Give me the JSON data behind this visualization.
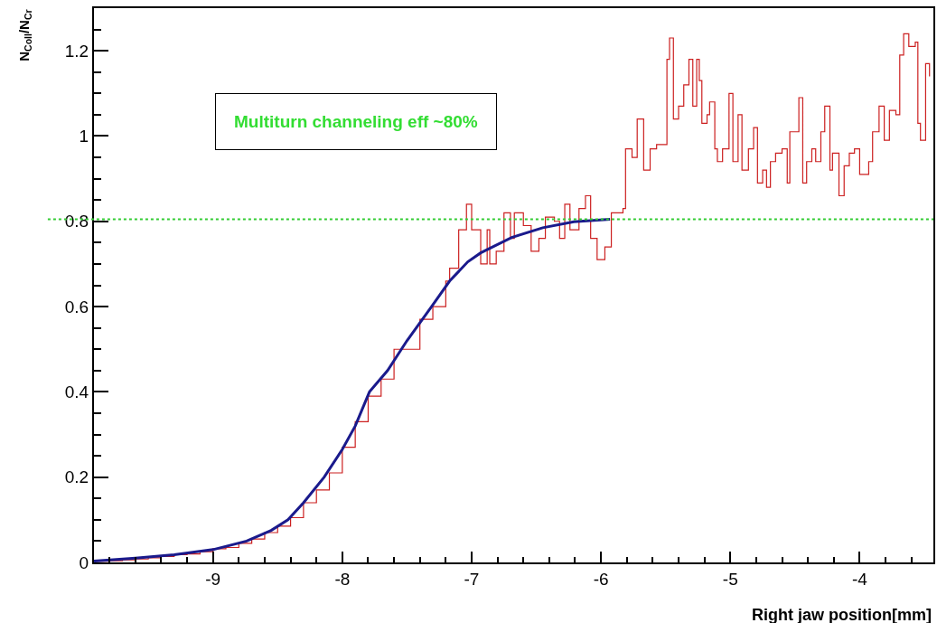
{
  "chart_data": {
    "type": "line",
    "xlabel": "Right jaw position[mm]",
    "ylabel": "N$_{Coll}$/N$_{Cr}$",
    "xlim": [
      -9.92,
      -3.43
    ],
    "xticks": [
      -9,
      -8,
      -7,
      -6,
      -5,
      -4
    ],
    "ylim": [
      0,
      1.3
    ],
    "yticks": [
      0,
      0.2,
      0.4,
      0.6,
      0.8,
      1,
      1.2
    ],
    "marker": "none",
    "series": [
      {
        "type": "step",
        "color": "#cc2020",
        "x": [
          -9.9,
          -9.8,
          -9.7,
          -9.6,
          -9.5,
          -9.4,
          -9.3,
          -9.2,
          -9.1,
          -9.0,
          -8.9,
          -8.8,
          -8.7,
          -8.6,
          -8.5,
          -8.4,
          -8.3,
          -8.2,
          -8.1,
          -8.0,
          -7.9,
          -7.8,
          -7.7,
          -7.6,
          -7.5,
          -7.4,
          -7.3,
          -7.2,
          -7.17,
          -7.1,
          -7.04,
          -7.0,
          -6.93,
          -6.88,
          -6.86,
          -6.81,
          -6.75,
          -6.7,
          -6.67,
          -6.6,
          -6.54,
          -6.48,
          -6.43,
          -6.36,
          -6.32,
          -6.28,
          -6.24,
          -6.17,
          -6.12,
          -6.08,
          -6.03,
          -5.97,
          -5.92,
          -5.83,
          -5.81,
          -5.76,
          -5.72,
          -5.67,
          -5.62,
          -5.57,
          -5.53,
          -5.49,
          -5.47,
          -5.44,
          -5.4,
          -5.36,
          -5.32,
          -5.29,
          -5.26,
          -5.24,
          -5.22,
          -5.18,
          -5.16,
          -5.12,
          -5.1,
          -5.06,
          -5.01,
          -4.98,
          -4.94,
          -4.91,
          -4.86,
          -4.82,
          -4.79,
          -4.75,
          -4.72,
          -4.69,
          -4.65,
          -4.6,
          -4.56,
          -4.54,
          -4.47,
          -4.44,
          -4.41,
          -4.37,
          -4.34,
          -4.3,
          -4.27,
          -4.23,
          -4.21,
          -4.16,
          -4.12,
          -4.08,
          -4.04,
          -4.0,
          -3.93,
          -3.9,
          -3.85,
          -3.81,
          -3.77,
          -3.72,
          -3.69,
          -3.66,
          -3.62,
          -3.57,
          -3.55,
          -3.53,
          -3.49,
          -3.46
        ],
        "values": [
          0.003,
          0.004,
          0.006,
          0.008,
          0.011,
          0.014,
          0.018,
          0.02,
          0.025,
          0.032,
          0.035,
          0.045,
          0.055,
          0.07,
          0.085,
          0.105,
          0.14,
          0.17,
          0.21,
          0.27,
          0.33,
          0.39,
          0.43,
          0.5,
          0.5,
          0.57,
          0.6,
          0.66,
          0.69,
          0.78,
          0.84,
          0.78,
          0.7,
          0.78,
          0.7,
          0.73,
          0.82,
          0.76,
          0.82,
          0.79,
          0.73,
          0.76,
          0.81,
          0.8,
          0.76,
          0.84,
          0.78,
          0.83,
          0.86,
          0.76,
          0.71,
          0.74,
          0.82,
          0.83,
          0.97,
          0.95,
          1.04,
          0.92,
          0.97,
          0.98,
          0.98,
          1.18,
          1.23,
          1.04,
          1.07,
          1.12,
          1.18,
          1.07,
          1.18,
          1.13,
          1.03,
          1.05,
          1.08,
          0.97,
          0.94,
          0.97,
          1.1,
          0.94,
          1.05,
          0.92,
          0.97,
          1.02,
          0.89,
          0.92,
          0.88,
          0.94,
          0.96,
          0.97,
          0.89,
          1.01,
          1.09,
          0.89,
          0.94,
          0.97,
          0.94,
          1.01,
          1.07,
          0.92,
          0.96,
          0.86,
          0.93,
          0.96,
          0.97,
          0.91,
          0.94,
          1.01,
          1.07,
          0.99,
          1.06,
          1.05,
          1.19,
          1.24,
          1.21,
          1.22,
          1.03,
          0.99,
          1.17,
          1.14
        ]
      },
      {
        "color": "#1a1a8c",
        "x": [
          -9.92,
          -9.6,
          -9.3,
          -9.0,
          -8.74,
          -8.55,
          -8.42,
          -8.3,
          -8.14,
          -8.0,
          -7.9,
          -7.79,
          -7.65,
          -7.5,
          -7.31,
          -7.17,
          -7.03,
          -6.93,
          -6.69,
          -6.45,
          -6.21,
          -5.93
        ],
        "values": [
          0.003,
          0.01,
          0.018,
          0.03,
          0.05,
          0.075,
          0.1,
          0.14,
          0.2,
          0.265,
          0.32,
          0.4,
          0.45,
          0.52,
          0.6,
          0.66,
          0.705,
          0.726,
          0.762,
          0.785,
          0.799,
          0.805
        ]
      }
    ],
    "ref_lines": [
      {
        "axis": "y",
        "value": 0.805,
        "color": "#33cc33",
        "line_style": "dotted"
      }
    ],
    "annotations": [
      "Multiturn channeling eff ~80%"
    ]
  }
}
